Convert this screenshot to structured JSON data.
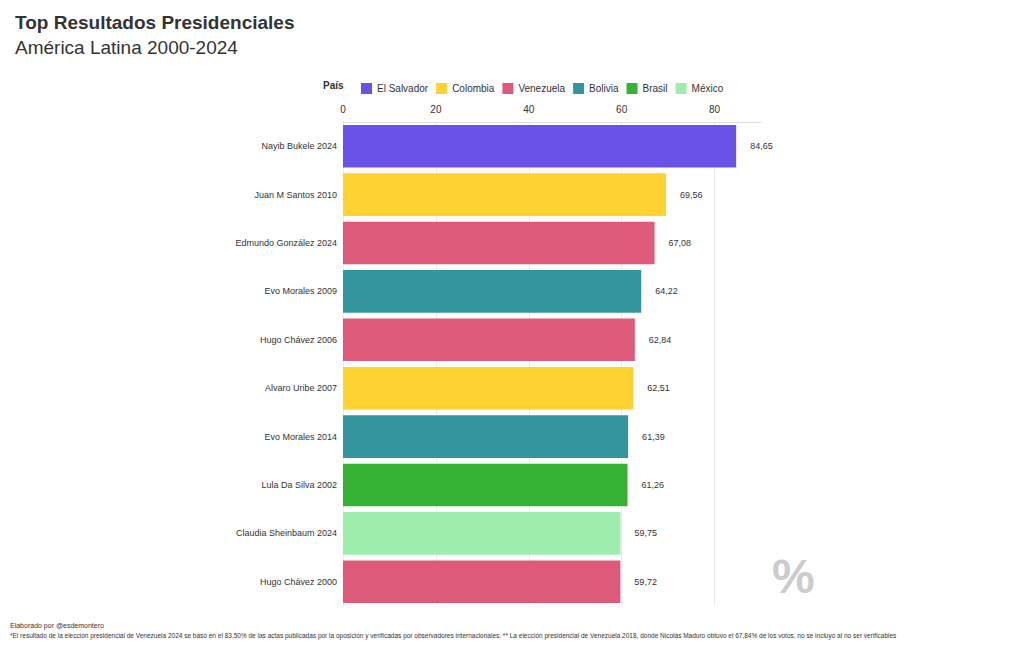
{
  "chart_data": {
    "type": "bar",
    "orientation": "horizontal",
    "title": "Top Resultados Presidenciales",
    "subtitle": "América Latina 2000-2024",
    "legend_title": "País",
    "watermark": "%",
    "credit": "Elaborado por @esdemontero",
    "note": "*El resultado de la elección presidencial de Venezuela 2024 se basó en el 83,50% de las actas publicadas por la oposición y verificadas por observadores internacionales. ** La elección presidencial de Venezuela 2018, donde Nicolás Maduro obtuvo el 67,84% de los votos, no se incluyó al no ser verificables",
    "categories": [
      "Nayib Bukele 2024",
      "Juan M Santos 2010",
      "Edmundo González 2024",
      "Evo Morales 2009",
      "Hugo Chávez 2006",
      "Alvaro Uribe 2007",
      "Evo Morales 2014",
      "Lula Da Silva 2002",
      "Claudia Sheinbaum 2024",
      "Hugo Chávez 2000"
    ],
    "series": [
      {
        "name": "El Salvador",
        "color": "#6a52e8",
        "values": [
          84.65,
          null,
          null,
          null,
          null,
          null,
          null,
          null,
          null,
          null
        ],
        "value_labels": [
          "84,65",
          null,
          null,
          null,
          null,
          null,
          null,
          null,
          null,
          null
        ]
      },
      {
        "name": "Colombia",
        "color": "#fdd231",
        "values": [
          null,
          69.56,
          null,
          null,
          null,
          62.51,
          null,
          null,
          null,
          null
        ],
        "value_labels": [
          null,
          "69,56",
          null,
          null,
          null,
          "62,51",
          null,
          null,
          null,
          null
        ]
      },
      {
        "name": "Venezuela",
        "color": "#dd5a7a",
        "values": [
          null,
          null,
          67.08,
          null,
          62.84,
          null,
          null,
          null,
          null,
          59.72
        ],
        "value_labels": [
          null,
          null,
          "67,08",
          null,
          "62,84",
          null,
          null,
          null,
          null,
          "59,72"
        ]
      },
      {
        "name": "Bolivia",
        "color": "#33969f",
        "values": [
          null,
          null,
          null,
          64.22,
          null,
          null,
          61.39,
          null,
          null,
          null
        ],
        "value_labels": [
          null,
          null,
          null,
          "64,22",
          null,
          null,
          "61,39",
          null,
          null,
          null
        ]
      },
      {
        "name": "Brasil",
        "color": "#33b233",
        "values": [
          null,
          null,
          null,
          null,
          null,
          null,
          null,
          61.26,
          null,
          null
        ],
        "value_labels": [
          null,
          null,
          null,
          null,
          null,
          null,
          null,
          "61,26",
          null,
          null
        ]
      },
      {
        "name": "México",
        "color": "#9deead",
        "values": [
          null,
          null,
          null,
          null,
          null,
          null,
          null,
          null,
          59.75,
          null
        ],
        "value_labels": [
          null,
          null,
          null,
          null,
          null,
          null,
          null,
          null,
          "59,75",
          null
        ]
      }
    ],
    "xlim": [
      0,
      90
    ],
    "xticks": [
      0,
      20,
      40,
      60,
      80
    ],
    "grid": true,
    "legend": "top",
    "data_labels": true
  }
}
